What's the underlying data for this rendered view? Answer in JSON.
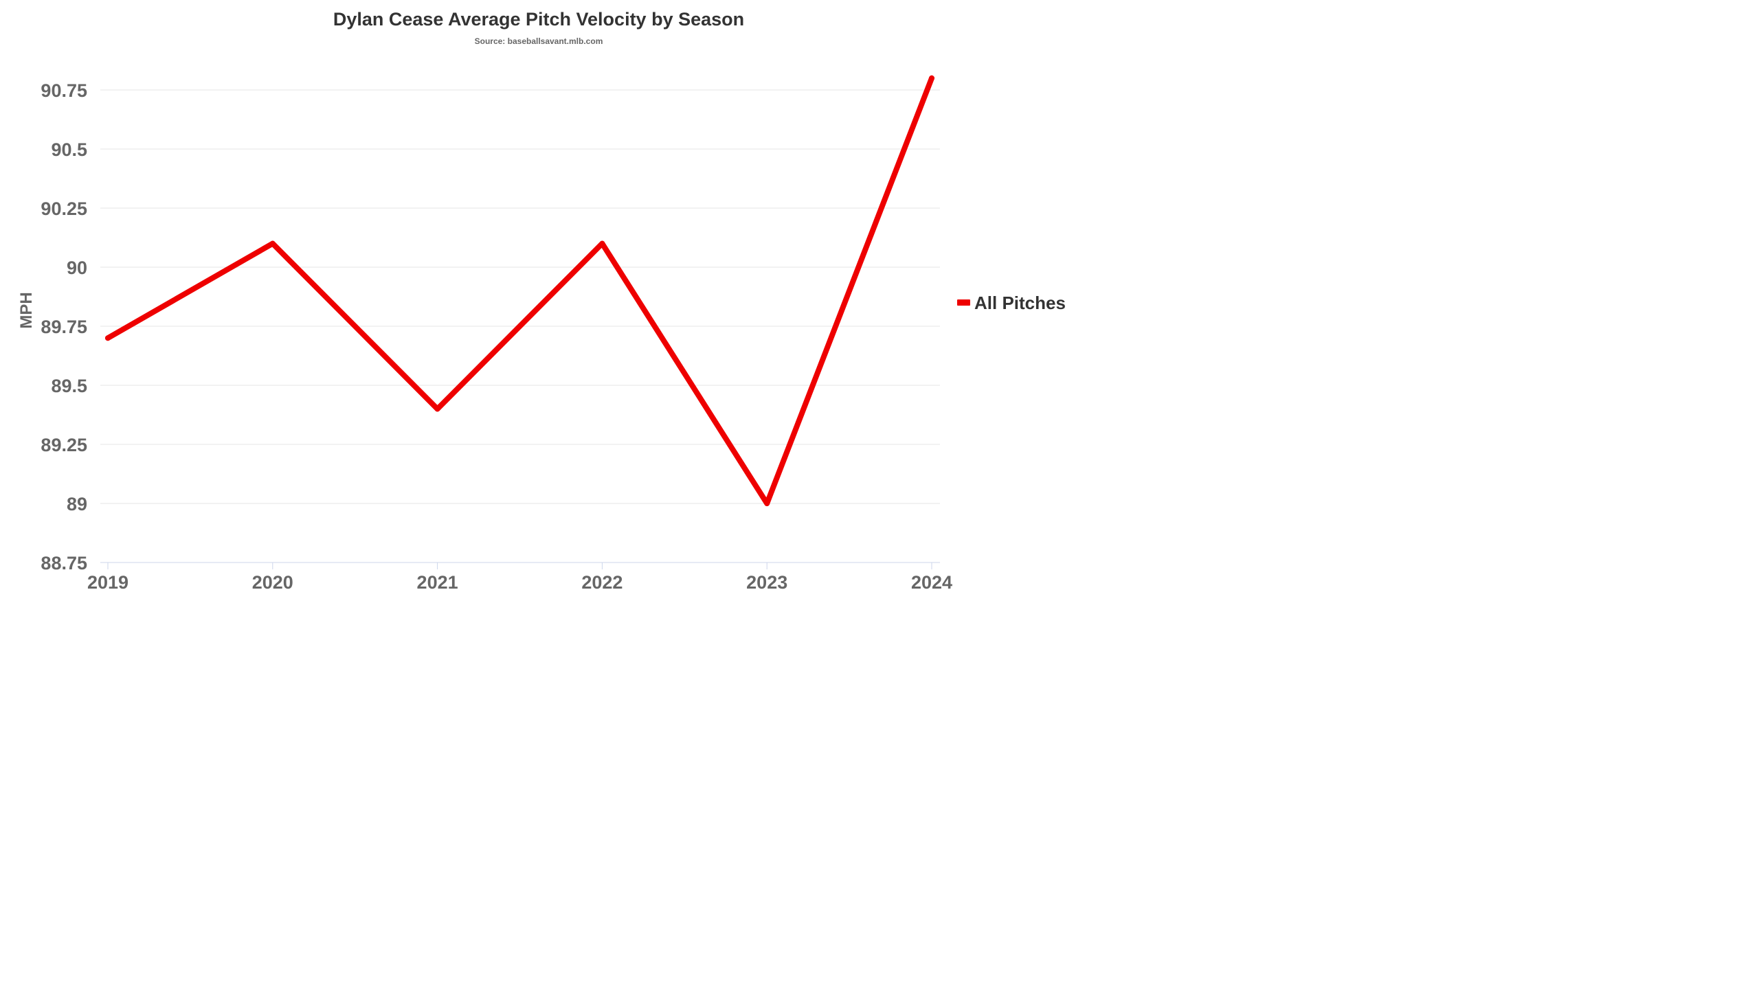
{
  "chart_data": {
    "type": "line",
    "title": "Dylan Cease Average Pitch Velocity by Season",
    "subtitle": "Source: baseballsavant.mlb.com",
    "xlabel": "",
    "ylabel": "MPH",
    "categories": [
      "2019",
      "2020",
      "2021",
      "2022",
      "2023",
      "2024"
    ],
    "series": [
      {
        "name": "All Pitches",
        "color": "#ee0000",
        "values": [
          89.7,
          90.1,
          89.4,
          90.1,
          89.0,
          90.8
        ]
      }
    ],
    "ylim": [
      88.75,
      90.75
    ],
    "yticks": [
      "88.75",
      "89",
      "89.25",
      "89.5",
      "89.75",
      "90",
      "90.25",
      "90.5",
      "90.75"
    ],
    "grid": true,
    "legend": "right"
  }
}
